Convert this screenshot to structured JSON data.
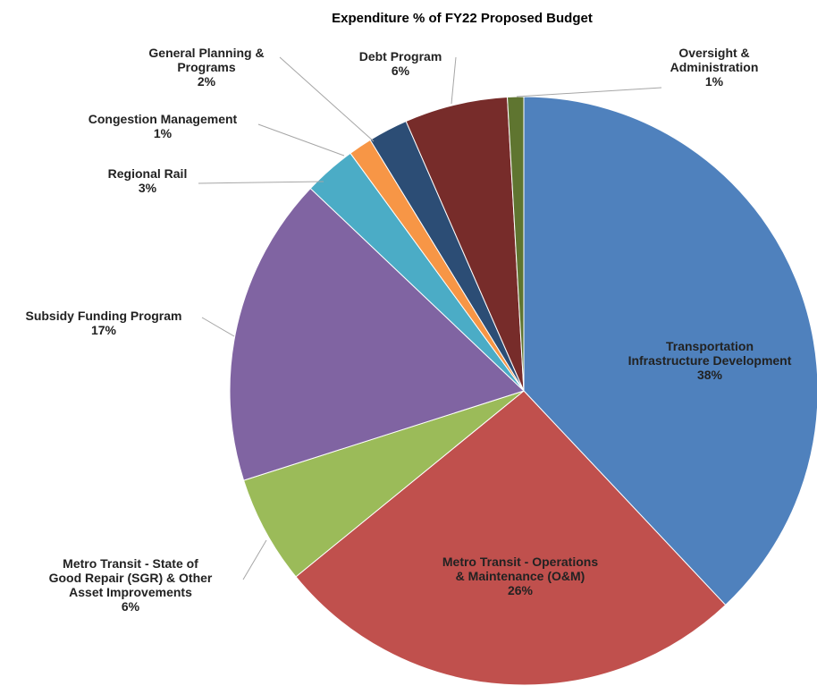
{
  "chart_data": {
    "type": "pie",
    "title": "Expenditure % of FY22 Proposed Budget",
    "start_angle_deg": 0,
    "direction": "clockwise",
    "slices": [
      {
        "name": "Transportation Infrastructure Development",
        "label_lines": [
          "Transportation",
          "Infrastructure Development"
        ],
        "value_label": "38%",
        "value": 38.2,
        "color": "#4F81BD",
        "label_placement": "inside"
      },
      {
        "name": "Metro Transit - Operations & Maintenance (O&M)",
        "label_lines": [
          "Metro Transit - Operations",
          "& Maintenance (O&M)"
        ],
        "value_label": "26%",
        "value": 26.3,
        "color": "#C0504D",
        "label_placement": "inside"
      },
      {
        "name": "Metro Transit - State of Good Repair (SGR) & Other Asset Improvements",
        "label_lines": [
          "Metro Transit - State of",
          "Good Repair (SGR) & Other",
          "Asset Improvements"
        ],
        "value_label": "6%",
        "value": 6.0,
        "color": "#9BBB59",
        "label_placement": "outside-left"
      },
      {
        "name": "Subsidy Funding Program",
        "label_lines": [
          "Subsidy Funding Program"
        ],
        "value_label": "17%",
        "value": 17.1,
        "color": "#8064A2",
        "label_placement": "outside-left"
      },
      {
        "name": "Regional Rail",
        "label_lines": [
          "Regional Rail"
        ],
        "value_label": "3%",
        "value": 2.9,
        "color": "#4BACC6",
        "label_placement": "outside-left"
      },
      {
        "name": "Congestion Management",
        "label_lines": [
          "Congestion Management"
        ],
        "value_label": "1%",
        "value": 1.3,
        "color": "#F79646",
        "label_placement": "outside-left"
      },
      {
        "name": "General Planning & Programs",
        "label_lines": [
          "General Planning &",
          "Programs"
        ],
        "value_label": "2%",
        "value": 2.2,
        "color": "#2C4D75",
        "label_placement": "outside-top"
      },
      {
        "name": "Debt Program",
        "label_lines": [
          "Debt Program"
        ],
        "value_label": "6%",
        "value": 5.7,
        "color": "#772C2A",
        "label_placement": "outside-top"
      },
      {
        "name": "Oversight & Administration",
        "label_lines": [
          "Oversight &",
          "Administration"
        ],
        "value_label": "1%",
        "value": 0.9,
        "color": "#5F7530",
        "label_placement": "outside-top-right"
      }
    ]
  }
}
